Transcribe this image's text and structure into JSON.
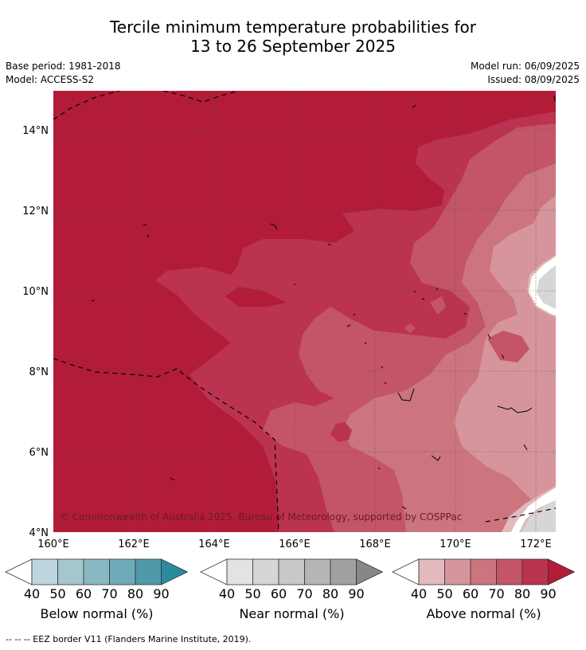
{
  "title": {
    "line1": "Tercile minimum temperature probabilities for",
    "line2": "13 to 26 September 2025"
  },
  "info": {
    "base_period": "Base period: 1981-2018",
    "model": "Model: ACCESS-S2",
    "model_run": "Model run: 06/09/2025",
    "issued": "Issued: 08/09/2025"
  },
  "map": {
    "lat_labels": [
      "14°N",
      "12°N",
      "10°N",
      "8°N",
      "6°N",
      "4°N"
    ],
    "lon_labels": [
      "160°E",
      "162°E",
      "164°E",
      "166°E",
      "168°E",
      "170°E",
      "172°E"
    ],
    "copyright": "© Commonwealth of Australia 2025, Bureau of Meteorology, supported by COSPPac",
    "extent": {
      "lon": [
        160,
        172.5
      ],
      "lat": [
        4,
        15
      ]
    }
  },
  "colorbars": [
    {
      "name": "below",
      "label": "Below normal (%)",
      "ticks": [
        "40",
        "50",
        "60",
        "70",
        "80",
        "90"
      ],
      "colors": [
        "#bdd6de",
        "#a4c7ce",
        "#89b8c3",
        "#6eaab9",
        "#4f99ab",
        "#2b8aa0"
      ]
    },
    {
      "name": "near",
      "label": "Near normal (%)",
      "ticks": [
        "40",
        "50",
        "60",
        "70",
        "80",
        "90"
      ],
      "colors": [
        "#e3e3e3",
        "#d6d6d6",
        "#c8c8c8",
        "#b5b5b5",
        "#a0a0a0",
        "#878787"
      ]
    },
    {
      "name": "above",
      "label": "Above normal (%)",
      "ticks": [
        "40",
        "50",
        "60",
        "70",
        "80",
        "90"
      ],
      "colors": [
        "#e2b9bd",
        "#d6959c",
        "#cc757e",
        "#c35566",
        "#bb3350",
        "#b21c39"
      ]
    }
  ],
  "footnote": "-- -- -- EEZ border V11 (Flanders Marine Institute, 2019)."
}
